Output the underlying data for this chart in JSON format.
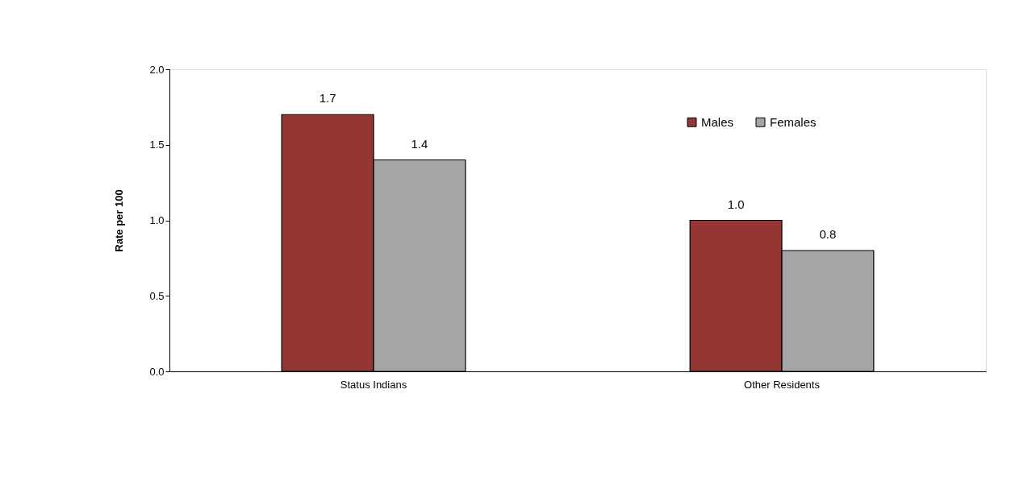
{
  "chart_data": {
    "type": "bar",
    "ylabel": "Rate per 100",
    "categories": [
      "Status Indians",
      "Other Residents"
    ],
    "series": [
      {
        "name": "Males",
        "color": "#943634",
        "values": [
          1.7,
          1.0
        ],
        "value_labels": [
          "1.7",
          "1.0"
        ]
      },
      {
        "name": "Females",
        "color": "#a5a5a5",
        "values": [
          1.4,
          0.8
        ],
        "value_labels": [
          "1.4",
          "0.8"
        ]
      }
    ],
    "ylim": [
      0,
      2
    ],
    "yticks": [
      {
        "value": 0,
        "label": "0.0"
      },
      {
        "value": 0.5,
        "label": "0.5"
      },
      {
        "value": 1,
        "label": "1.0"
      },
      {
        "value": 1.5,
        "label": "1.5"
      },
      {
        "value": 2,
        "label": "2.0"
      }
    ],
    "grid": false,
    "legend": "top right"
  }
}
